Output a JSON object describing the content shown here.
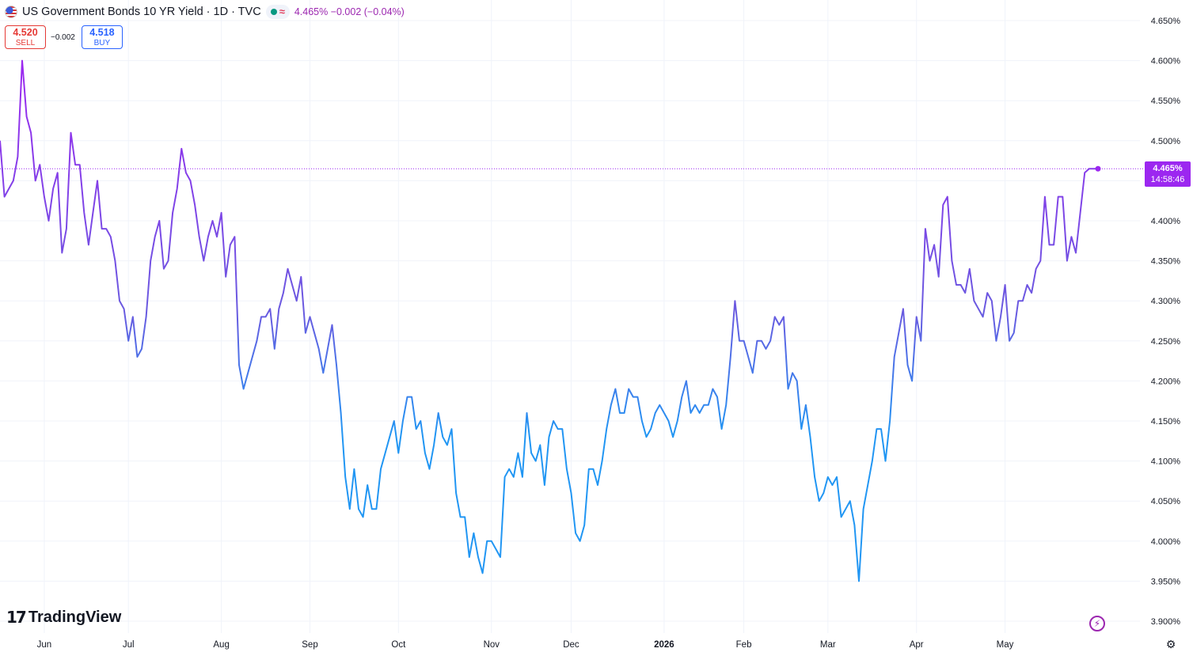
{
  "header": {
    "title": "US Government Bonds 10 YR Yield · 1D · TVC",
    "approx_glyph": "≈",
    "quote": "4.465% −0.002 (−0.04%)"
  },
  "trade": {
    "sell_value": "4.520",
    "sell_label": "SELL",
    "spread": "−0.002",
    "buy_value": "4.518",
    "buy_label": "BUY"
  },
  "price_tag": {
    "price": "4.465%",
    "countdown": "14:58:46"
  },
  "logo": {
    "mark": "17",
    "text": "TradingView"
  },
  "colors": {
    "line_start": "#9c27f0",
    "line_mid": "#2196f3",
    "price_tag": "#9c27f0",
    "sell": "#e53935",
    "buy": "#2962ff"
  },
  "icons": {
    "flash": "flash-icon",
    "settings": "gear-icon",
    "flag": "us-flag-icon"
  },
  "chart_data": {
    "type": "line",
    "title": "US Government Bonds 10 YR Yield · 1D · TVC",
    "ylim": [
      3.9,
      4.65
    ],
    "y_ticks": [
      "4.650%",
      "4.600%",
      "4.550%",
      "4.500%",
      "4.450%",
      "4.400%",
      "4.350%",
      "4.300%",
      "4.250%",
      "4.200%",
      "4.150%",
      "4.100%",
      "4.050%",
      "4.000%",
      "3.950%",
      "3.900%"
    ],
    "x_ticks": [
      {
        "label": "Jun",
        "index": 10
      },
      {
        "label": "Jul",
        "index": 29
      },
      {
        "label": "Aug",
        "index": 50
      },
      {
        "label": "Sep",
        "index": 70
      },
      {
        "label": "Oct",
        "index": 90
      },
      {
        "label": "Nov",
        "index": 111
      },
      {
        "label": "Dec",
        "index": 129
      },
      {
        "label": "2026",
        "index": 150
      },
      {
        "label": "Feb",
        "index": 168
      },
      {
        "label": "Mar",
        "index": 187
      },
      {
        "label": "Apr",
        "index": 207
      },
      {
        "label": "May",
        "index": 227
      }
    ],
    "current_price": 4.465,
    "values": [
      4.5,
      4.43,
      4.44,
      4.45,
      4.48,
      4.6,
      4.53,
      4.51,
      4.45,
      4.47,
      4.43,
      4.4,
      4.44,
      4.46,
      4.36,
      4.39,
      4.51,
      4.47,
      4.47,
      4.41,
      4.37,
      4.41,
      4.45,
      4.39,
      4.39,
      4.38,
      4.35,
      4.3,
      4.29,
      4.25,
      4.28,
      4.23,
      4.24,
      4.28,
      4.35,
      4.38,
      4.4,
      4.34,
      4.35,
      4.41,
      4.44,
      4.49,
      4.46,
      4.45,
      4.42,
      4.38,
      4.35,
      4.38,
      4.4,
      4.38,
      4.41,
      4.33,
      4.37,
      4.38,
      4.22,
      4.19,
      4.21,
      4.23,
      4.25,
      4.28,
      4.28,
      4.29,
      4.24,
      4.29,
      4.31,
      4.34,
      4.32,
      4.3,
      4.33,
      4.26,
      4.28,
      4.26,
      4.24,
      4.21,
      4.24,
      4.27,
      4.22,
      4.16,
      4.08,
      4.04,
      4.09,
      4.04,
      4.03,
      4.07,
      4.04,
      4.04,
      4.09,
      4.11,
      4.13,
      4.15,
      4.11,
      4.15,
      4.18,
      4.18,
      4.14,
      4.15,
      4.11,
      4.09,
      4.12,
      4.16,
      4.13,
      4.12,
      4.14,
      4.06,
      4.03,
      4.03,
      3.98,
      4.01,
      3.98,
      3.96,
      4.0,
      4.0,
      3.99,
      3.98,
      4.08,
      4.09,
      4.08,
      4.11,
      4.08,
      4.16,
      4.11,
      4.1,
      4.12,
      4.07,
      4.13,
      4.15,
      4.14,
      4.14,
      4.09,
      4.06,
      4.01,
      4.0,
      4.02,
      4.09,
      4.09,
      4.07,
      4.1,
      4.14,
      4.17,
      4.19,
      4.16,
      4.16,
      4.19,
      4.18,
      4.18,
      4.15,
      4.13,
      4.14,
      4.16,
      4.17,
      4.16,
      4.15,
      4.13,
      4.15,
      4.18,
      4.2,
      4.16,
      4.17,
      4.16,
      4.17,
      4.17,
      4.19,
      4.18,
      4.14,
      4.17,
      4.23,
      4.3,
      4.25,
      4.25,
      4.23,
      4.21,
      4.25,
      4.25,
      4.24,
      4.25,
      4.28,
      4.27,
      4.28,
      4.19,
      4.21,
      4.2,
      4.14,
      4.17,
      4.13,
      4.08,
      4.05,
      4.06,
      4.08,
      4.07,
      4.08,
      4.03,
      4.04,
      4.05,
      4.02,
      3.95,
      4.04,
      4.07,
      4.1,
      4.14,
      4.14,
      4.1,
      4.15,
      4.23,
      4.26,
      4.29,
      4.22,
      4.2,
      4.28,
      4.25,
      4.39,
      4.35,
      4.37,
      4.33,
      4.42,
      4.43,
      4.35,
      4.32,
      4.32,
      4.31,
      4.34,
      4.3,
      4.29,
      4.28,
      4.31,
      4.3,
      4.25,
      4.28,
      4.32,
      4.25,
      4.26,
      4.3,
      4.3,
      4.32,
      4.31,
      4.34,
      4.35,
      4.43,
      4.37,
      4.37,
      4.43,
      4.43,
      4.35,
      4.38,
      4.36,
      4.41,
      4.46,
      4.465,
      4.465,
      4.465
    ]
  }
}
